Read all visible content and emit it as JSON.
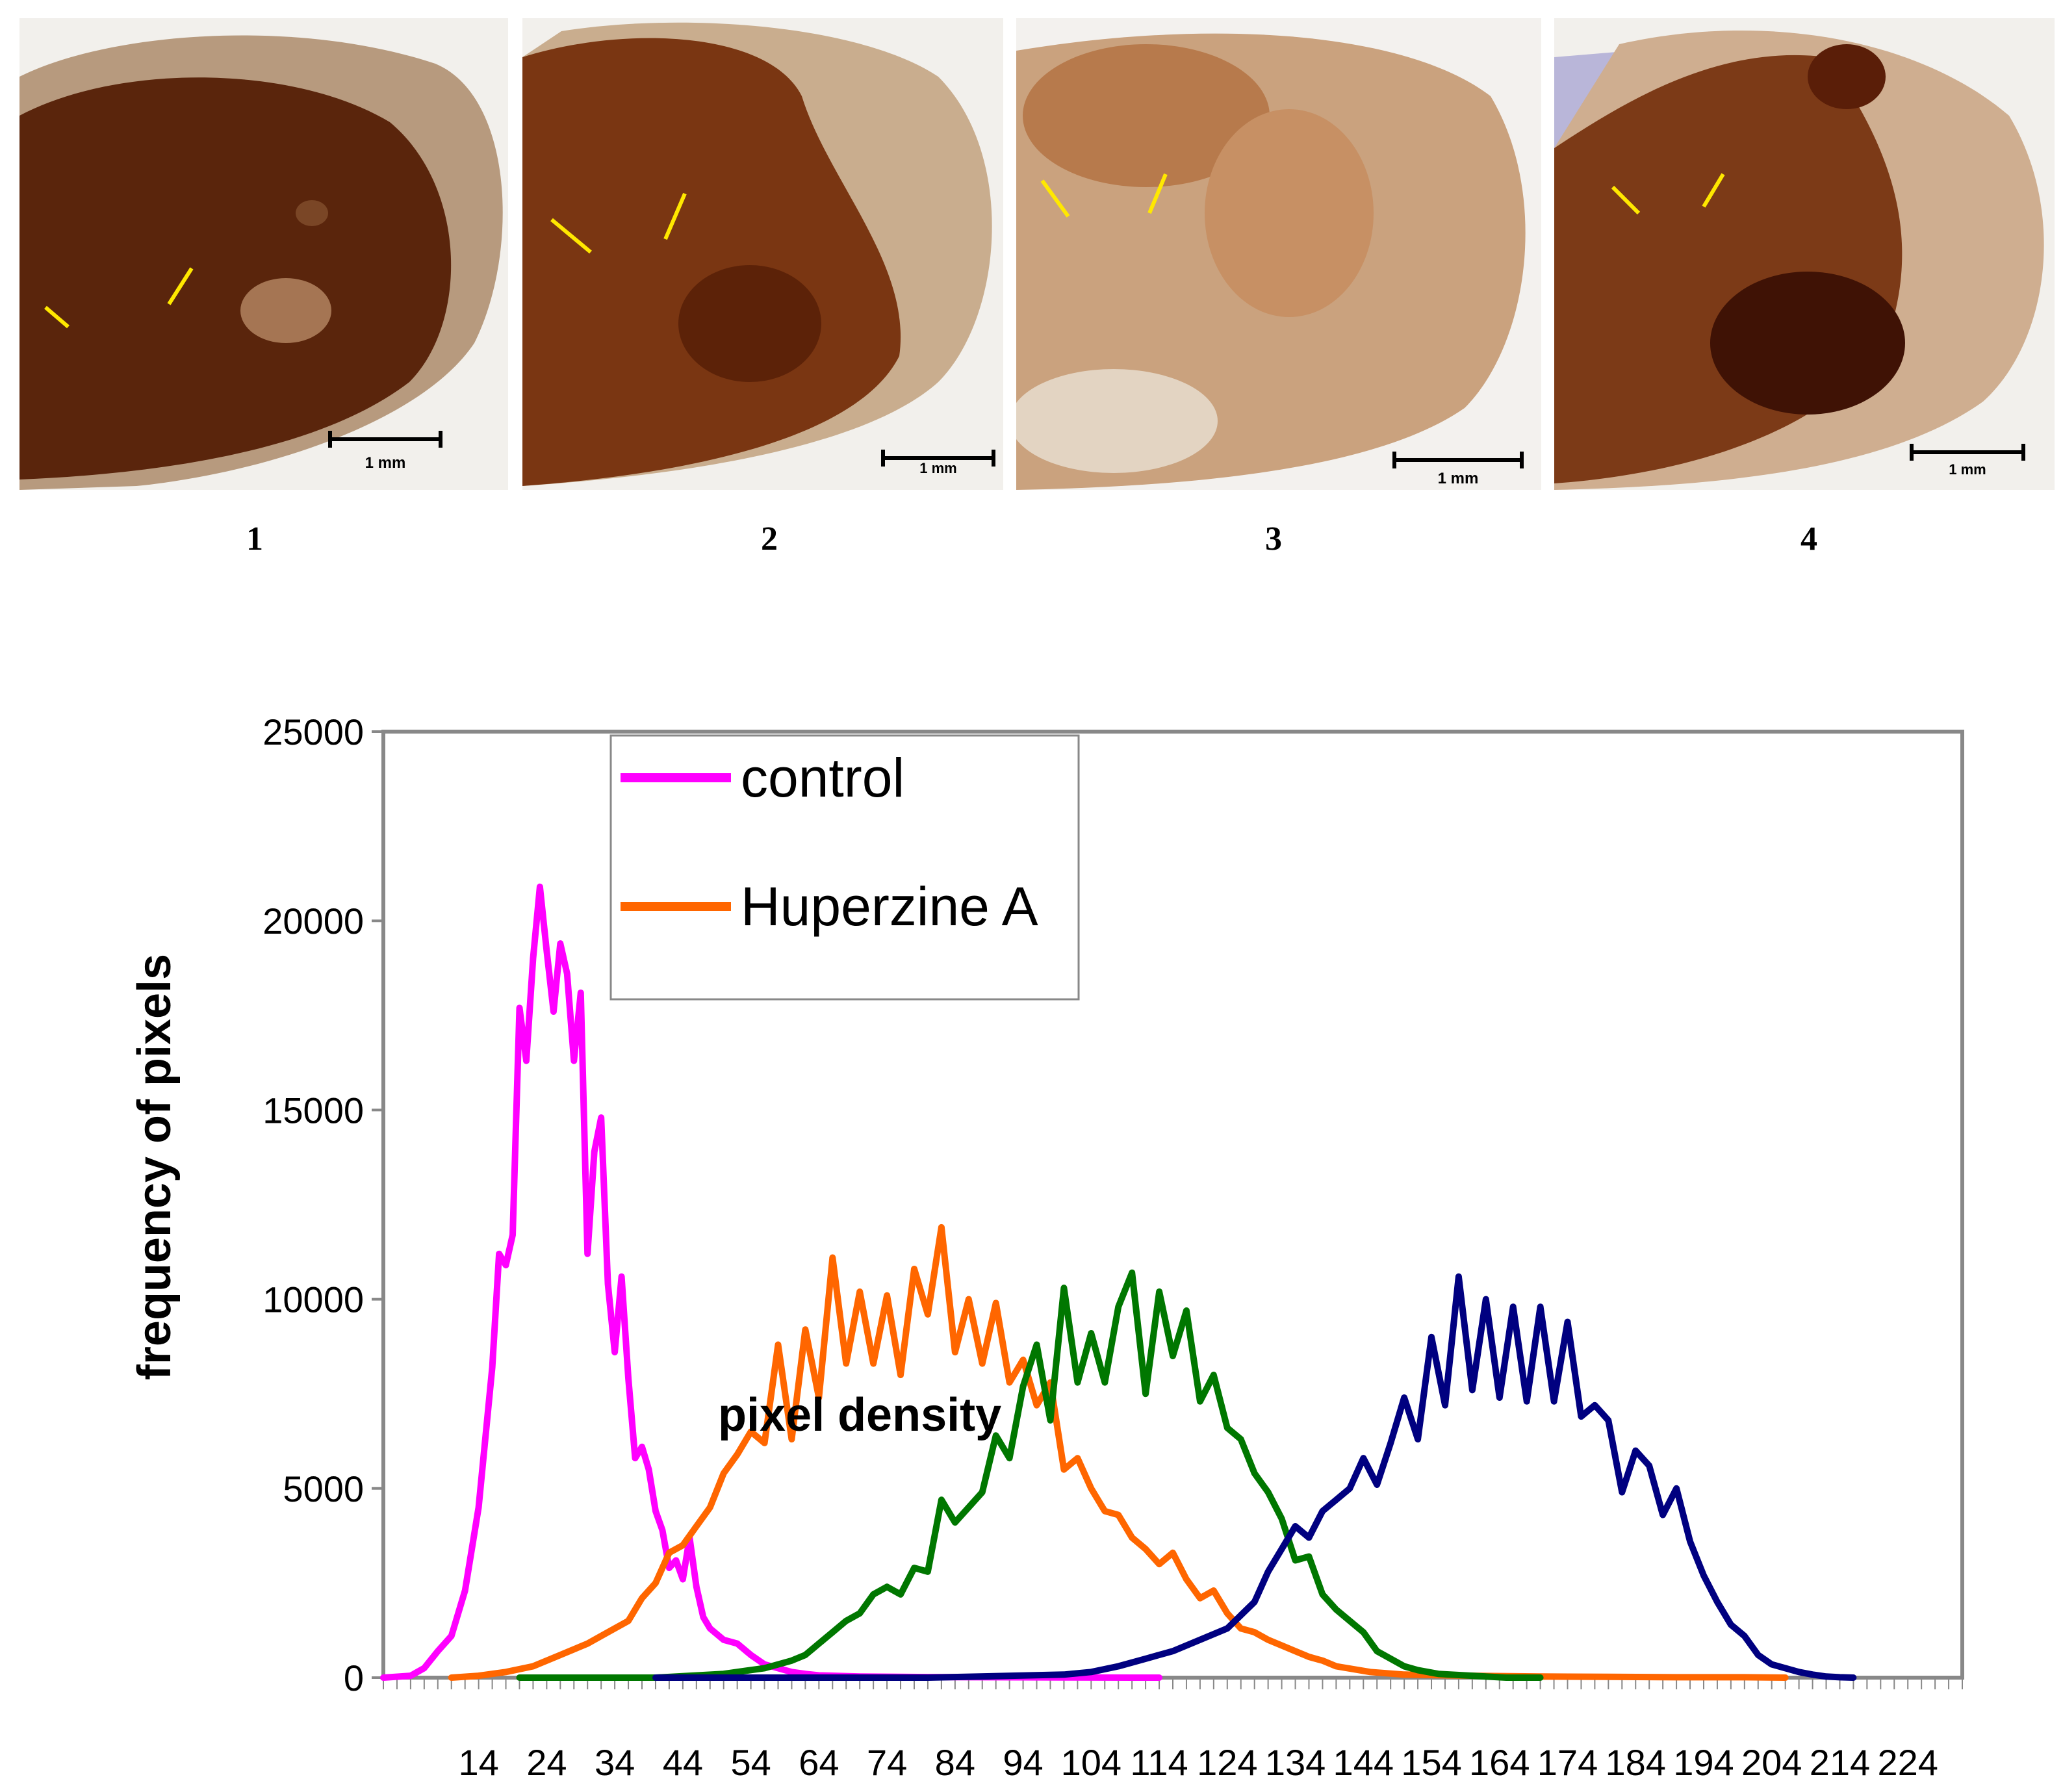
{
  "panels": [
    {
      "label": "1",
      "scale_bar": "1 mm",
      "tone": "#5a250c"
    },
    {
      "label": "2",
      "scale_bar": "1 mm",
      "tone": "#7a3612"
    },
    {
      "label": "3",
      "scale_bar": "1 mm",
      "tone": "#caa27e"
    },
    {
      "label": "4",
      "scale_bar": "1 mm",
      "tone": "#7c3a17"
    }
  ],
  "colors": {
    "control": "#ff00ff",
    "huperzine": "#ff6600",
    "green": "#007700",
    "navy": "#000080",
    "arrow": "#ffe800"
  },
  "chart_data": {
    "type": "line",
    "ylabel": "frequency of pixels",
    "annotation": "pixel density",
    "ylim": [
      0,
      25000
    ],
    "yticks": [
      0,
      5000,
      10000,
      15000,
      20000,
      25000
    ],
    "xlim": [
      0,
      232
    ],
    "xticks": [
      14,
      24,
      34,
      44,
      54,
      64,
      74,
      84,
      94,
      104,
      114,
      124,
      134,
      144,
      154,
      164,
      174,
      184,
      194,
      204,
      214,
      224
    ],
    "legend": [
      "control",
      "Huperzine A"
    ],
    "series": [
      {
        "name": "control",
        "color": "#ff00ff",
        "x": [
          0,
          4,
          6,
          8,
          10,
          12,
          14,
          16,
          17,
          18,
          19,
          20,
          21,
          22,
          23,
          24,
          25,
          26,
          27,
          28,
          29,
          30,
          31,
          32,
          33,
          34,
          35,
          36,
          37,
          38,
          39,
          40,
          41,
          42,
          43,
          44,
          45,
          46,
          47,
          48,
          50,
          52,
          54,
          56,
          58,
          60,
          62,
          64,
          70,
          80,
          90,
          100,
          110,
          114
        ],
        "y": [
          0,
          50,
          250,
          700,
          1100,
          2300,
          4500,
          8200,
          11200,
          10900,
          11700,
          17700,
          16300,
          19000,
          20900,
          19200,
          17600,
          19400,
          18600,
          16300,
          18100,
          11200,
          13900,
          14800,
          10400,
          8600,
          10600,
          7900,
          5800,
          6100,
          5500,
          4400,
          3900,
          2900,
          3100,
          2600,
          3700,
          2400,
          1600,
          1300,
          1000,
          900,
          600,
          350,
          250,
          150,
          100,
          60,
          30,
          15,
          10,
          5,
          0,
          0
        ]
      },
      {
        "name": "Huperzine A",
        "color": "#ff6600",
        "x": [
          10,
          14,
          18,
          22,
          26,
          30,
          32,
          34,
          36,
          38,
          40,
          42,
          44,
          46,
          48,
          50,
          52,
          54,
          56,
          58,
          60,
          62,
          64,
          66,
          68,
          70,
          72,
          74,
          76,
          78,
          80,
          82,
          84,
          86,
          88,
          90,
          92,
          94,
          96,
          98,
          100,
          102,
          104,
          106,
          108,
          110,
          112,
          114,
          116,
          118,
          120,
          122,
          124,
          126,
          128,
          130,
          132,
          134,
          136,
          138,
          140,
          145,
          150,
          160,
          170,
          180,
          190,
          200,
          206
        ],
        "y": [
          0,
          50,
          150,
          300,
          600,
          900,
          1100,
          1300,
          1500,
          2100,
          2500,
          3300,
          3500,
          4000,
          4500,
          5400,
          5900,
          6500,
          6200,
          8800,
          6300,
          9200,
          7400,
          11100,
          8300,
          10200,
          8300,
          10100,
          8000,
          10800,
          9600,
          11900,
          8600,
          10000,
          8300,
          9900,
          7800,
          8400,
          7200,
          7800,
          5500,
          5800,
          5000,
          4400,
          4300,
          3700,
          3400,
          3000,
          3300,
          2600,
          2100,
          2300,
          1700,
          1300,
          1200,
          1000,
          850,
          700,
          550,
          450,
          300,
          150,
          80,
          50,
          30,
          20,
          10,
          10,
          0
        ]
      },
      {
        "name": "",
        "color": "#007700",
        "x": [
          20,
          40,
          50,
          56,
          60,
          62,
          64,
          66,
          68,
          70,
          72,
          74,
          76,
          78,
          80,
          82,
          84,
          86,
          88,
          90,
          92,
          94,
          96,
          98,
          100,
          102,
          104,
          106,
          108,
          110,
          112,
          114,
          116,
          118,
          120,
          122,
          124,
          126,
          128,
          130,
          132,
          134,
          136,
          138,
          140,
          142,
          144,
          146,
          148,
          150,
          152,
          155,
          160,
          165,
          170
        ],
        "y": [
          0,
          0,
          100,
          250,
          450,
          600,
          900,
          1200,
          1500,
          1700,
          2200,
          2400,
          2200,
          2900,
          2800,
          4700,
          4100,
          4500,
          4900,
          6400,
          5800,
          7700,
          8800,
          6800,
          10300,
          7800,
          9100,
          7800,
          9800,
          10700,
          7500,
          10200,
          8500,
          9700,
          7300,
          8000,
          6600,
          6300,
          5400,
          4900,
          4200,
          3100,
          3200,
          2200,
          1800,
          1500,
          1200,
          700,
          500,
          300,
          200,
          100,
          50,
          0,
          0
        ]
      },
      {
        "name": "",
        "color": "#000080",
        "x": [
          40,
          80,
          100,
          104,
          108,
          112,
          116,
          120,
          124,
          128,
          130,
          132,
          134,
          136,
          138,
          140,
          142,
          144,
          146,
          148,
          150,
          152,
          154,
          156,
          158,
          160,
          162,
          164,
          166,
          168,
          170,
          172,
          174,
          176,
          178,
          180,
          182,
          184,
          186,
          188,
          190,
          192,
          194,
          196,
          198,
          200,
          202,
          204,
          206,
          208,
          210,
          212,
          214,
          216
        ],
        "y": [
          0,
          0,
          80,
          150,
          300,
          500,
          700,
          1000,
          1300,
          2000,
          2800,
          3400,
          4000,
          3700,
          4400,
          4700,
          5000,
          5800,
          5100,
          6200,
          7400,
          6300,
          9000,
          7200,
          10600,
          7600,
          10000,
          7400,
          9800,
          7300,
          9800,
          7300,
          9400,
          6900,
          7200,
          6800,
          4900,
          6000,
          5600,
          4300,
          5000,
          3600,
          2700,
          2000,
          1400,
          1100,
          600,
          350,
          250,
          150,
          80,
          30,
          10,
          0
        ]
      }
    ]
  }
}
